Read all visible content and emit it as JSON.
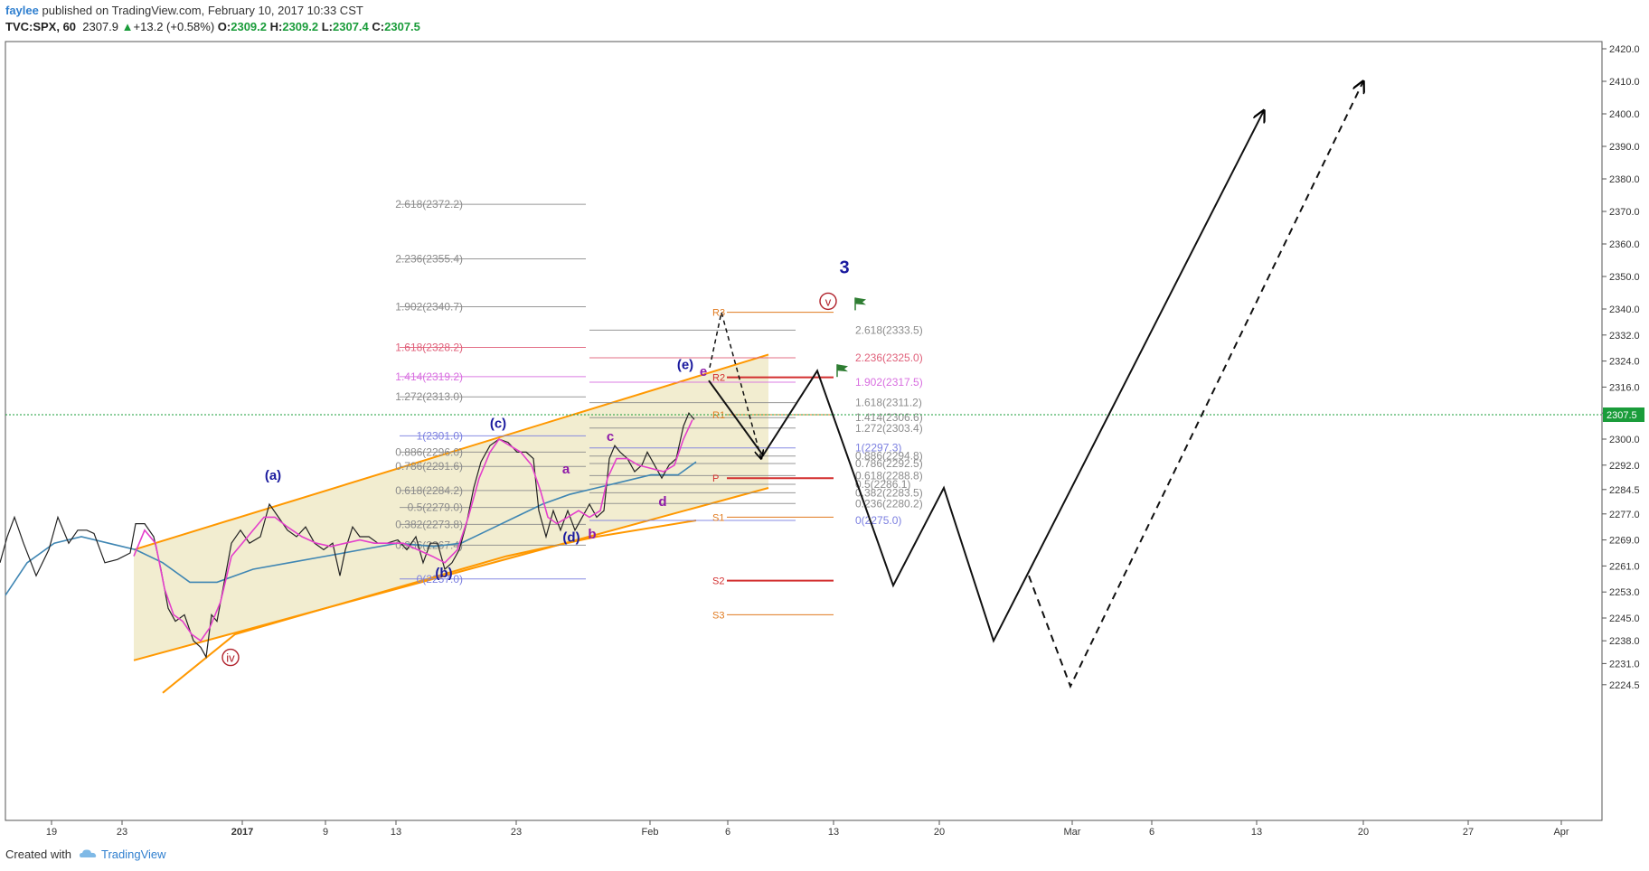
{
  "header": {
    "author": "faylee",
    "published": "published on TradingView.com, February 10, 2017 10:33 CST",
    "symbol": "TVC:SPX, 60",
    "last": "2307.9",
    "change": "+13.2 (+0.58%)",
    "change_icon": "triangle-up-icon",
    "o_label": "O:",
    "o_value": "2309.2",
    "h_label": "H:",
    "h_value": "2309.2",
    "l_label": "L:",
    "l_value": "2307.4",
    "c_label": "C:",
    "c_value": "2307.5"
  },
  "footer": {
    "created_with": "Created with",
    "brand": "TradingView",
    "brand_icon": "tradingview-cloud-icon"
  },
  "colors": {
    "channel": "#ff9800",
    "channel_fill": "#efe8c4",
    "ema_fast": "#e43fcb",
    "ema_slow": "#3f86b3",
    "wave_blue": "#1a1a9e",
    "wave_purple": "#8e1aa8",
    "wave_red": "#b0202a",
    "price_line": "#1a9c3a",
    "pivot_red": "#d32f2f",
    "pivot_orange": "#e07a1f",
    "fib_gray": "#8c8c8c",
    "fib_pink": "#e0607a",
    "fib_magenta": "#d86ee0",
    "fib_blue": "#7b7fe0"
  },
  "chart_data": {
    "type": "line",
    "symbol": "TVC:SPX, 60",
    "y_axis": {
      "ticks": [
        "2420.0",
        "2410.0",
        "2400.0",
        "2390.0",
        "2380.0",
        "2370.0",
        "2360.0",
        "2350.0",
        "2340.0",
        "2332.0",
        "2324.0",
        "2316.0",
        "2308.0",
        "2300.0",
        "2292.0",
        "2284.5",
        "2277.0",
        "2269.0",
        "2261.0",
        "2253.0",
        "2245.0",
        "2238.0",
        "2231.0",
        "2224.5"
      ],
      "last_price": "2307.5"
    },
    "x_axis": {
      "ticks": [
        "19",
        "23",
        "2017",
        "9",
        "13",
        "23",
        "Feb",
        "6",
        "13",
        "20",
        "Mar",
        "6",
        "13",
        "20",
        "27",
        "Apr"
      ]
    },
    "price_path": [
      [
        0,
        2262
      ],
      [
        8,
        2270
      ],
      [
        16,
        2276
      ],
      [
        26,
        2268
      ],
      [
        40,
        2258
      ],
      [
        54,
        2266
      ],
      [
        64,
        2276
      ],
      [
        76,
        2268
      ],
      [
        86,
        2272
      ],
      [
        96,
        2272
      ],
      [
        104,
        2271
      ],
      [
        116,
        2262
      ],
      [
        130,
        2263
      ],
      [
        144,
        2265
      ],
      [
        150,
        2274
      ],
      [
        160,
        2274
      ],
      [
        170,
        2270
      ],
      [
        178,
        2260
      ],
      [
        186,
        2248
      ],
      [
        194,
        2244
      ],
      [
        204,
        2246
      ],
      [
        214,
        2238
      ],
      [
        222,
        2236
      ],
      [
        228,
        2233
      ],
      [
        234,
        2246
      ],
      [
        240,
        2244
      ],
      [
        248,
        2256
      ],
      [
        256,
        2268
      ],
      [
        266,
        2272
      ],
      [
        276,
        2268
      ],
      [
        288,
        2270
      ],
      [
        298,
        2280
      ],
      [
        308,
        2276
      ],
      [
        318,
        2272
      ],
      [
        328,
        2270
      ],
      [
        338,
        2273
      ],
      [
        348,
        2268
      ],
      [
        358,
        2266
      ],
      [
        368,
        2268
      ],
      [
        376,
        2258
      ],
      [
        382,
        2266
      ],
      [
        390,
        2273
      ],
      [
        398,
        2270
      ],
      [
        408,
        2270
      ],
      [
        418,
        2268
      ],
      [
        428,
        2268
      ],
      [
        440,
        2269
      ],
      [
        450,
        2266
      ],
      [
        460,
        2270
      ],
      [
        468,
        2262
      ],
      [
        476,
        2268
      ],
      [
        484,
        2268
      ],
      [
        492,
        2260
      ],
      [
        500,
        2262
      ],
      [
        508,
        2266
      ],
      [
        516,
        2274
      ],
      [
        524,
        2285
      ],
      [
        532,
        2293
      ],
      [
        542,
        2298
      ],
      [
        552,
        2300
      ],
      [
        562,
        2299
      ],
      [
        572,
        2296
      ],
      [
        582,
        2296
      ],
      [
        590,
        2294
      ],
      [
        596,
        2278
      ],
      [
        604,
        2270
      ],
      [
        612,
        2278
      ],
      [
        620,
        2272
      ],
      [
        628,
        2278
      ],
      [
        636,
        2272
      ],
      [
        644,
        2276
      ],
      [
        652,
        2280
      ],
      [
        660,
        2276
      ],
      [
        668,
        2278
      ],
      [
        674,
        2294
      ],
      [
        680,
        2298
      ],
      [
        686,
        2296
      ],
      [
        694,
        2294
      ],
      [
        702,
        2290
      ],
      [
        710,
        2292
      ],
      [
        716,
        2296
      ],
      [
        724,
        2292
      ],
      [
        732,
        2288
      ],
      [
        740,
        2292
      ],
      [
        748,
        2294
      ],
      [
        756,
        2304
      ],
      [
        762,
        2308
      ],
      [
        768,
        2306
      ]
    ],
    "ema_fast": [
      [
        148,
        2264
      ],
      [
        160,
        2272
      ],
      [
        172,
        2268
      ],
      [
        182,
        2254
      ],
      [
        192,
        2246
      ],
      [
        202,
        2244
      ],
      [
        212,
        2240
      ],
      [
        222,
        2238
      ],
      [
        232,
        2242
      ],
      [
        244,
        2250
      ],
      [
        256,
        2264
      ],
      [
        268,
        2268
      ],
      [
        280,
        2272
      ],
      [
        292,
        2276
      ],
      [
        304,
        2276
      ],
      [
        318,
        2273
      ],
      [
        334,
        2270
      ],
      [
        350,
        2268
      ],
      [
        366,
        2267
      ],
      [
        382,
        2268
      ],
      [
        398,
        2269
      ],
      [
        414,
        2268
      ],
      [
        430,
        2268
      ],
      [
        446,
        2268
      ],
      [
        462,
        2266
      ],
      [
        478,
        2264
      ],
      [
        492,
        2262
      ],
      [
        506,
        2266
      ],
      [
        518,
        2276
      ],
      [
        530,
        2288
      ],
      [
        542,
        2296
      ],
      [
        552,
        2300
      ],
      [
        564,
        2298
      ],
      [
        576,
        2296
      ],
      [
        588,
        2292
      ],
      [
        598,
        2284
      ],
      [
        606,
        2276
      ],
      [
        616,
        2274
      ],
      [
        628,
        2276
      ],
      [
        640,
        2278
      ],
      [
        652,
        2276
      ],
      [
        664,
        2278
      ],
      [
        672,
        2288
      ],
      [
        682,
        2294
      ],
      [
        694,
        2294
      ],
      [
        706,
        2292
      ],
      [
        720,
        2291
      ],
      [
        734,
        2290
      ],
      [
        746,
        2292
      ],
      [
        756,
        2300
      ],
      [
        766,
        2306
      ]
    ],
    "ema_slow": [
      [
        6,
        2252
      ],
      [
        30,
        2262
      ],
      [
        60,
        2268
      ],
      [
        90,
        2270
      ],
      [
        120,
        2268
      ],
      [
        150,
        2266
      ],
      [
        180,
        2262
      ],
      [
        210,
        2256
      ],
      [
        240,
        2256
      ],
      [
        280,
        2260
      ],
      [
        320,
        2262
      ],
      [
        360,
        2264
      ],
      [
        400,
        2266
      ],
      [
        440,
        2268
      ],
      [
        480,
        2267
      ],
      [
        510,
        2268
      ],
      [
        540,
        2272
      ],
      [
        570,
        2276
      ],
      [
        600,
        2280
      ],
      [
        630,
        2283
      ],
      [
        660,
        2285
      ],
      [
        690,
        2287
      ],
      [
        720,
        2289
      ],
      [
        750,
        2289
      ],
      [
        770,
        2293
      ]
    ],
    "fib_left": [
      {
        "label": "2.618(2372.2)",
        "y": 2372.2,
        "color": "gray"
      },
      {
        "label": "2.236(2355.4)",
        "y": 2355.4,
        "color": "gray"
      },
      {
        "label": "1.902(2340.7)",
        "y": 2340.7,
        "color": "gray"
      },
      {
        "label": "1.618(2328.2)",
        "y": 2328.2,
        "color": "pink"
      },
      {
        "label": "1.414(2319.2)",
        "y": 2319.2,
        "color": "magenta"
      },
      {
        "label": "1.272(2313.0)",
        "y": 2313.0,
        "color": "gray"
      },
      {
        "label": "1(2301.0)",
        "y": 2301.0,
        "color": "blue"
      },
      {
        "label": "0.886(2296.0)",
        "y": 2296.0,
        "color": "gray"
      },
      {
        "label": "0.786(2291.6)",
        "y": 2291.6,
        "color": "gray"
      },
      {
        "label": "0.618(2284.2)",
        "y": 2284.2,
        "color": "gray"
      },
      {
        "label": "0.5(2279.0)",
        "y": 2279.0,
        "color": "gray"
      },
      {
        "label": "0.382(2273.8)",
        "y": 2273.8,
        "color": "gray"
      },
      {
        "label": "0.236(2267.4)",
        "y": 2267.4,
        "color": "gray"
      },
      {
        "label": "0(2257.0)",
        "y": 2257.0,
        "color": "blue"
      }
    ],
    "fib_right": [
      {
        "label": "2.618(2333.5)",
        "y": 2333.5,
        "color": "gray"
      },
      {
        "label": "2.236(2325.0)",
        "y": 2325.0,
        "color": "pink"
      },
      {
        "label": "1.902(2317.5)",
        "y": 2317.5,
        "color": "magenta"
      },
      {
        "label": "1.618(2311.2)",
        "y": 2311.2,
        "color": "gray"
      },
      {
        "label": "1.414(2306.6)",
        "y": 2306.6,
        "color": "gray"
      },
      {
        "label": "1.272(2303.4)",
        "y": 2303.4,
        "color": "gray"
      },
      {
        "label": "1(2297.3)",
        "y": 2297.3,
        "color": "blue"
      },
      {
        "label": "0.886(2294.8)",
        "y": 2294.8,
        "color": "gray"
      },
      {
        "label": "0.786(2292.5)",
        "y": 2292.5,
        "color": "gray"
      },
      {
        "label": "0.618(2288.8)",
        "y": 2288.8,
        "color": "gray"
      },
      {
        "label": "0.5(2286.1)",
        "y": 2286.1,
        "color": "gray"
      },
      {
        "label": "0.382(2283.5)",
        "y": 2283.5,
        "color": "gray"
      },
      {
        "label": "0.236(2280.2)",
        "y": 2280.2,
        "color": "gray"
      },
      {
        "label": "0(2275.0)",
        "y": 2275.0,
        "color": "blue"
      }
    ],
    "pivots": [
      {
        "label": "R3",
        "y": 2339.0,
        "color": "orange"
      },
      {
        "label": "R2",
        "y": 2319.0,
        "color": "red"
      },
      {
        "label": "R1",
        "y": 2307.5,
        "color": "orange"
      },
      {
        "label": "P",
        "y": 2288.0,
        "color": "red"
      },
      {
        "label": "S1",
        "y": 2276.0,
        "color": "orange"
      },
      {
        "label": "S2",
        "y": 2256.5,
        "color": "red"
      },
      {
        "label": "S3",
        "y": 2246.0,
        "color": "orange"
      }
    ],
    "wave_labels": [
      {
        "label": "(a)",
        "x": 302,
        "y": 2287.5,
        "color": "blue"
      },
      {
        "label": "(b)",
        "x": 491,
        "y": 2257.5,
        "color": "blue"
      },
      {
        "label": "(c)",
        "x": 551,
        "y": 2303.5,
        "color": "blue"
      },
      {
        "label": "(d)",
        "x": 632,
        "y": 2268.5,
        "color": "blue"
      },
      {
        "label": "(e)",
        "x": 758,
        "y": 2321.5,
        "color": "blue"
      },
      {
        "label": "3",
        "x": 934,
        "y": 2351.0,
        "color": "blue"
      },
      {
        "label": "a",
        "x": 626,
        "y": 2289.5,
        "color": "purple"
      },
      {
        "label": "b",
        "x": 655,
        "y": 2269.5,
        "color": "purple"
      },
      {
        "label": "c",
        "x": 675,
        "y": 2299.5,
        "color": "purple"
      },
      {
        "label": "d",
        "x": 733,
        "y": 2279.5,
        "color": "purple"
      },
      {
        "label": "e",
        "x": 778,
        "y": 2319.5,
        "color": "purple"
      }
    ],
    "circled_labels": [
      {
        "label": "iv",
        "x": 220,
        "y": 2231.5,
        "color": "red"
      },
      {
        "label": "v",
        "x": 787,
        "y": 2341.0,
        "color": "red"
      }
    ],
    "projection_solid": [
      [
        784,
        2318
      ],
      [
        844,
        2295
      ],
      [
        904,
        2321
      ],
      [
        988,
        2255
      ],
      [
        1044,
        2285
      ],
      [
        1099,
        2238
      ],
      [
        1398,
        2401
      ]
    ],
    "projection_dashed": [
      [
        785,
        2322
      ],
      [
        798,
        2339
      ],
      [
        842,
        2294
      ]
    ],
    "projection_dashed_long": [
      [
        1138,
        2258
      ],
      [
        1184,
        2224
      ],
      [
        1508,
        2410
      ]
    ],
    "channel": {
      "lower": [
        [
          148,
          2232
        ],
        [
          850,
          2285
        ]
      ],
      "upper": [
        [
          148,
          2266
        ],
        [
          850,
          2326
        ]
      ]
    },
    "ma_orange": [
      [
        180,
        2222
      ],
      [
        260,
        2240
      ],
      [
        360,
        2248
      ],
      [
        460,
        2256
      ],
      [
        560,
        2264
      ],
      [
        660,
        2270
      ],
      [
        770,
        2275
      ]
    ]
  }
}
